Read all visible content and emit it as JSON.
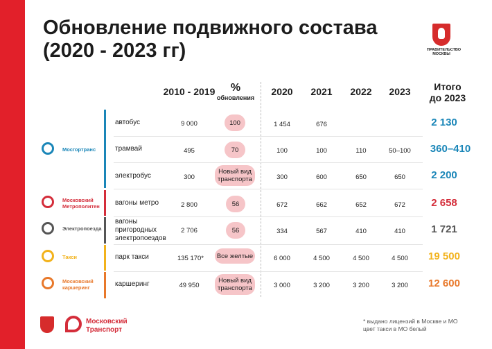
{
  "title_line1": "Обновление подвижного состава",
  "title_line2": "(2020 - 2023 гг)",
  "crest_caption": "ПРАВИТЕЛЬСТВО МОСКВЫ",
  "headers": {
    "base": "2010 - 2019",
    "pct_symbol": "%",
    "pct_label": "обновления",
    "y2020": "2020",
    "y2021": "2021",
    "y2022": "2022",
    "y2023": "2023",
    "total_line1": "Итого",
    "total_line2": "до 2023"
  },
  "operators": {
    "mosgortrans": "Мосгортранс",
    "metro_line1": "Московский",
    "metro_line2": "Метрополитен",
    "elektro": "Электропоезда",
    "taxi": "Такси",
    "carsharing_line1": "Московский",
    "carsharing_line2": "каршеринг"
  },
  "rows": [
    {
      "label": "автобус",
      "base": "9 000",
      "pct": "100",
      "y2020": "1 454",
      "y2021": "676",
      "y2022": "",
      "y2023": "",
      "total": "2 130"
    },
    {
      "label": "трамвай",
      "base": "495",
      "pct": "70",
      "y2020": "100",
      "y2021": "100",
      "y2022": "110",
      "y2023": "50–100",
      "total": "360–410"
    },
    {
      "label": "электробус",
      "base": "300",
      "pct": "Новый вид транспорта",
      "y2020": "300",
      "y2021": "600",
      "y2022": "650",
      "y2023": "650",
      "total": "2 200"
    },
    {
      "label": "вагоны метро",
      "base": "2 800",
      "pct": "56",
      "y2020": "672",
      "y2021": "662",
      "y2022": "652",
      "y2023": "672",
      "total": "2 658"
    },
    {
      "label": "вагоны пригородных электропоездов",
      "base": "2 706",
      "pct": "56",
      "y2020": "334",
      "y2021": "567",
      "y2022": "410",
      "y2023": "410",
      "total": "1 721"
    },
    {
      "label": "парк такси",
      "base": "135 170*",
      "pct": "Все желтые",
      "y2020": "6 000",
      "y2021": "4 500",
      "y2022": "4 500",
      "y2023": "4 500",
      "total": "19 500"
    },
    {
      "label": "каршеринг",
      "base": "49 950",
      "pct": "Новый вид транспорта",
      "y2020": "3 000",
      "y2021": "3 200",
      "y2022": "3 200",
      "y2023": "3 200",
      "total": "12 600"
    }
  ],
  "footnote_line1": "* выдано лицензий в Москве и МО",
  "footnote_line2": "цвет такси в МО белый",
  "bottom_logo_line1": "Московский",
  "bottom_logo_line2": "Транспорт",
  "colors": {
    "red": "#e2202a",
    "mosgortrans": "#1a86b8",
    "metro": "#d42d3a",
    "elektro": "#555555",
    "taxi": "#f2b21b",
    "carsharing": "#e8782a",
    "pill": "#f6c5c8"
  },
  "icons": {
    "mosgortrans": "bus-pin-icon",
    "metro": "metro-m-icon",
    "elektro": "train-icon",
    "taxi": "taxi-icon",
    "carsharing": "steering-wheel-icon",
    "crest": "moscow-crest-icon"
  }
}
